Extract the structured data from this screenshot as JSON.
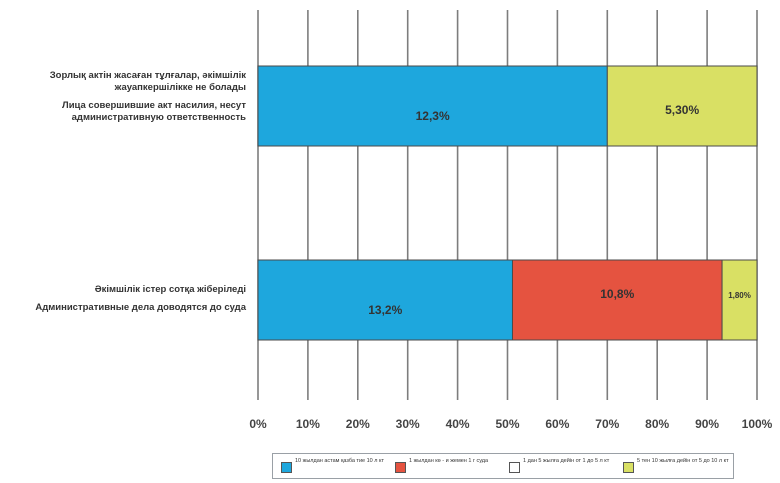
{
  "chart_data": {
    "type": "bar",
    "orientation": "horizontal",
    "stacked": "percent",
    "categories": [
      {
        "kz": "Зорлық актін жасаған тұлғалар, әкімшілік жауапкершілікке не болады",
        "ru": "Лица совершившие акт насилия, несут административную ответственность"
      },
      {
        "kz": "Әкімшілік істер сотқа жіберіледі",
        "ru": "Административные дела доводятся до суда"
      }
    ],
    "series": [
      {
        "name": "10 жылдан астам қазба тие 10 л кт",
        "color": "#1ea7dd",
        "values": [
          70,
          51
        ],
        "labels": [
          "12,3%",
          "13,2%"
        ]
      },
      {
        "name": "1 жылдан кө - и жемен 1 г суда",
        "color": "#e55340",
        "values": [
          0,
          42
        ],
        "labels": [
          "",
          "10,8%"
        ]
      },
      {
        "name": "1 дан 5 жылға дейін от 1 до 5 л кт",
        "color": "#ffffff",
        "values": [
          0,
          0
        ],
        "labels": [
          "",
          ""
        ]
      },
      {
        "name": "5 тен 10 жылға дейін от 5 до 10 л кт",
        "color": "#d9e064",
        "values": [
          30,
          7
        ],
        "labels": [
          "5,30%",
          "1,80%"
        ]
      }
    ],
    "xlim": [
      0,
      100
    ],
    "xticks": [
      0,
      10,
      20,
      30,
      40,
      50,
      60,
      70,
      80,
      90,
      100
    ],
    "tick_labels": [
      "0%",
      "10%",
      "20%",
      "30%",
      "40%",
      "50%",
      "60%",
      "70%",
      "80%",
      "90%",
      "100%"
    ],
    "grid": true,
    "legend_position": "bottom",
    "title": "",
    "xlabel": "",
    "ylabel": ""
  }
}
